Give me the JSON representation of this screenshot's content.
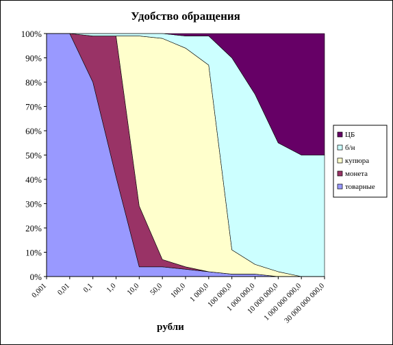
{
  "chart_data": {
    "type": "area",
    "stacked": true,
    "normalized": true,
    "title": "Удобство обращения",
    "xlabel": "рубли",
    "ylabel": "",
    "ylim": [
      0,
      100
    ],
    "y_ticks": [
      "0%",
      "10%",
      "20%",
      "30%",
      "40%",
      "50%",
      "60%",
      "70%",
      "80%",
      "90%",
      "100%"
    ],
    "grid": {
      "x": false,
      "y": false
    },
    "legend_position": "right",
    "categories": [
      "0,001",
      "0,01",
      "0,1",
      "1,0",
      "10,0",
      "50,0",
      "100,0",
      "1 000,0",
      "100 000,0",
      "1 000 000,0",
      "10 000 000,0",
      "1 000 000 000,0",
      "30 000 000 000,0"
    ],
    "series": [
      {
        "name": "товарные",
        "color": "#9999FF",
        "values": [
          100,
          100,
          80,
          41,
          4,
          4,
          3,
          2,
          1,
          1,
          0,
          0,
          0
        ]
      },
      {
        "name": "монета",
        "color": "#993366",
        "values": [
          0,
          0,
          19,
          58,
          25,
          3,
          1,
          0,
          0,
          0,
          0,
          0,
          0
        ]
      },
      {
        "name": "купюра",
        "color": "#FFFFCC",
        "values": [
          0,
          0,
          0,
          0,
          70,
          91,
          90,
          85,
          10,
          4,
          2,
          0,
          0
        ]
      },
      {
        "name": "б/н",
        "color": "#CCFFFF",
        "values": [
          0,
          0,
          1,
          1,
          1,
          2,
          5,
          12,
          79,
          70,
          53,
          50,
          50
        ]
      },
      {
        "name": "ЦБ",
        "color": "#660066",
        "values": [
          0,
          0,
          0,
          0,
          0,
          0,
          1,
          1,
          10,
          25,
          45,
          50,
          50
        ]
      }
    ]
  }
}
